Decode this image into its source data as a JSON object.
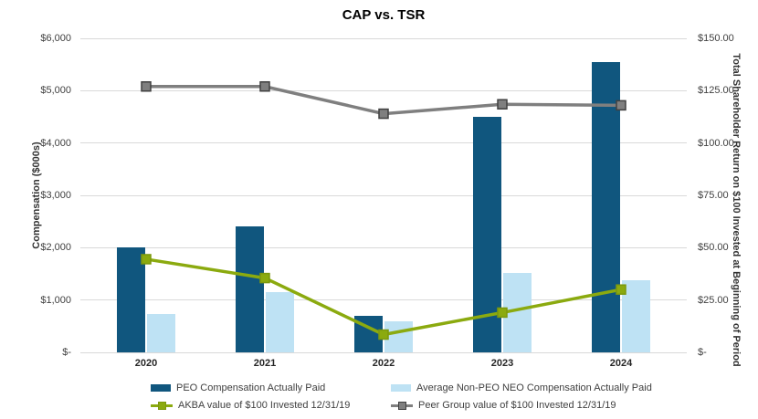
{
  "title": "CAP vs. TSR",
  "chart_data": {
    "type": "combo",
    "categories": [
      "2020",
      "2021",
      "2022",
      "2023",
      "2024"
    ],
    "bar_series": [
      {
        "name": "PEO Compensation Actually Paid",
        "axis": "left",
        "color": "#10567E",
        "values": [
          2000,
          2400,
          690,
          4500,
          5550
        ]
      },
      {
        "name": "Average Non-PEO NEO Compensation Actually Paid",
        "axis": "left",
        "color": "#BEE2F4",
        "values": [
          730,
          1150,
          600,
          1520,
          1370
        ]
      }
    ],
    "line_series": [
      {
        "name": "AKBA value of $100 Invested 12/31/19",
        "axis": "right",
        "color": "#8BAA0F",
        "marker_border": "#7C980D",
        "values": [
          44.5,
          35.5,
          8.5,
          19,
          30
        ]
      },
      {
        "name": "Peer Group value of $100 Invested 12/31/19",
        "axis": "right",
        "color": "#7F7F7F",
        "marker_border": "#404040",
        "values": [
          127,
          127,
          114,
          118.5,
          118
        ]
      }
    ],
    "left_axis": {
      "title": "Compensation ($000s)",
      "min": 0,
      "max": 6000,
      "ticks": [
        "$6,000",
        "$5,000",
        "$4,000",
        "$3,000",
        "$2,000",
        "$1,000",
        "$-"
      ]
    },
    "right_axis": {
      "title": "Total Shareholder Return on $100 Invested at Beginning of Period",
      "min": 0,
      "max": 150,
      "ticks": [
        "$150.00",
        "$125.00",
        "$100.00",
        "$75.00",
        "$50.00",
        "$25.00",
        "$-"
      ]
    },
    "grid": true,
    "gridline_color": "#D9D9D9",
    "legend_position": "bottom"
  }
}
